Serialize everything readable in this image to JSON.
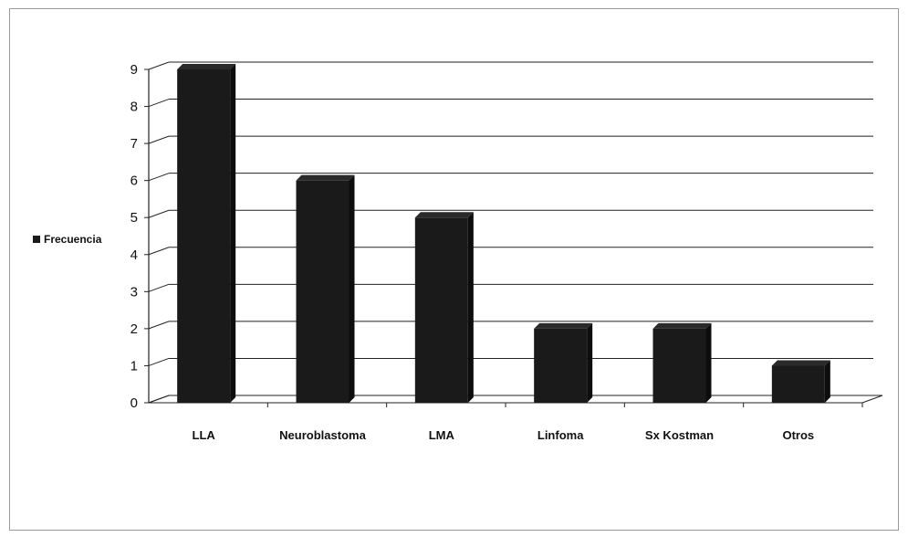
{
  "chart_data": {
    "type": "bar",
    "categories": [
      "LLA",
      "Neuroblastoma",
      "LMA",
      "Linfoma",
      "Sx Kostman",
      "Otros"
    ],
    "series": [
      {
        "name": "Frecuencia",
        "values": [
          9,
          6,
          5,
          2,
          2,
          1
        ]
      }
    ],
    "ylim": [
      0,
      9
    ],
    "yticks": [
      "0",
      "1",
      "2",
      "3",
      "4",
      "5",
      "6",
      "7",
      "8",
      "9"
    ],
    "grid": true,
    "legend_position": "left",
    "bar_color": "#1a1a1a"
  }
}
